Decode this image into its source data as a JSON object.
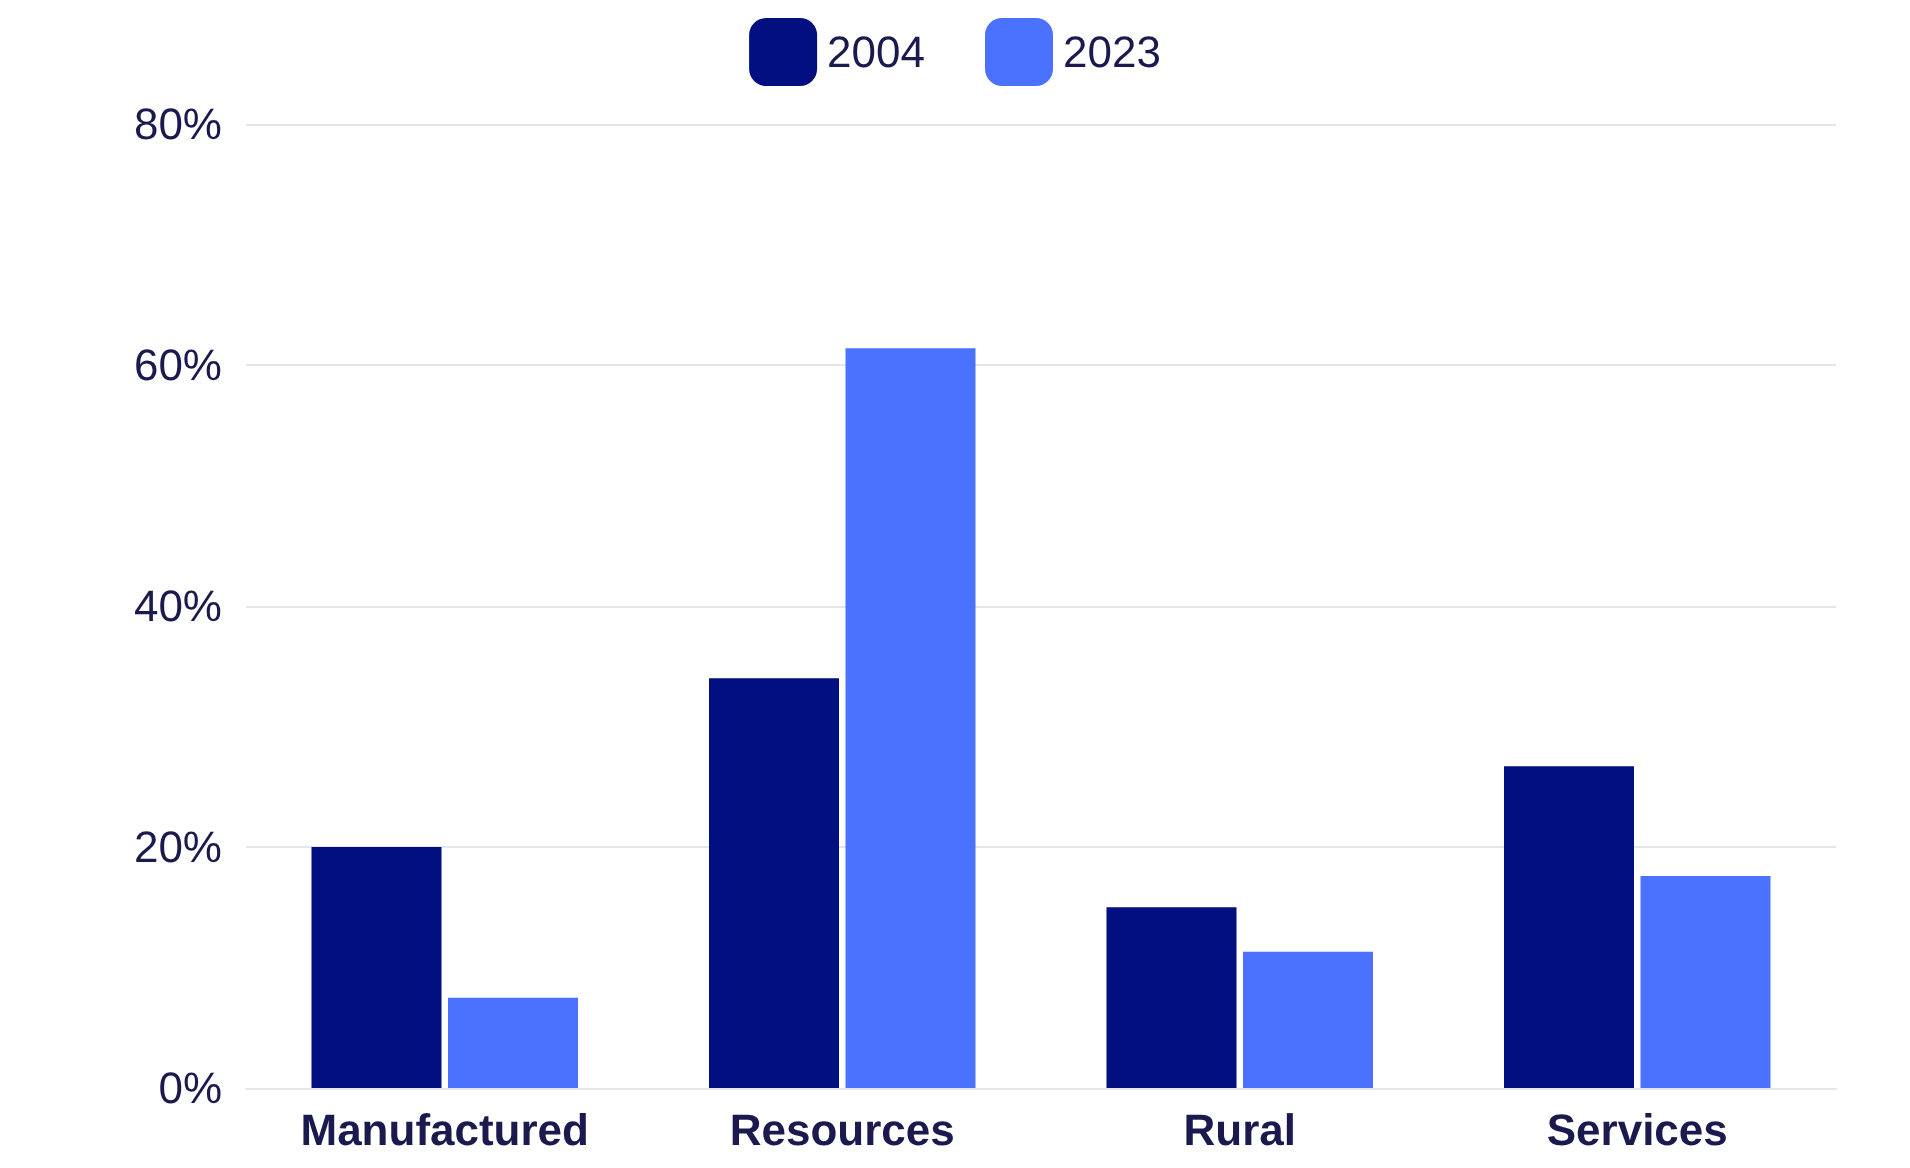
{
  "chart_data": {
    "type": "bar",
    "categories": [
      "Manufactured",
      "Resources",
      "Rural",
      "Services"
    ],
    "series": [
      {
        "name": "2004",
        "color": "#020f80",
        "values": [
          20,
          34,
          15,
          26.7
        ]
      },
      {
        "name": "2023",
        "color": "#4a72ff",
        "values": [
          7.5,
          61.4,
          11.3,
          17.6
        ]
      }
    ],
    "ylim": [
      0,
      80
    ],
    "yticks": [
      {
        "value": 0,
        "label": "0%"
      },
      {
        "value": 20,
        "label": "20%"
      },
      {
        "value": 40,
        "label": "40%"
      },
      {
        "value": 60,
        "label": "60%"
      },
      {
        "value": 80,
        "label": "80%"
      }
    ],
    "grid": "y",
    "legend": "top"
  }
}
